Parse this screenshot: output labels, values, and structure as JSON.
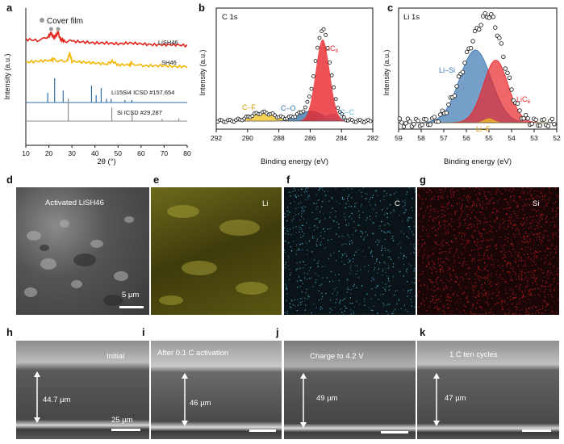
{
  "panels": {
    "a": {
      "letter": "a"
    },
    "b": {
      "letter": "b"
    },
    "c": {
      "letter": "c"
    },
    "d": {
      "letter": "d",
      "label": "Activated LiSH46",
      "scalebar": "5 µm"
    },
    "e": {
      "letter": "e",
      "element": "Li"
    },
    "f": {
      "letter": "f",
      "element": "C"
    },
    "g": {
      "letter": "g",
      "element": "Si"
    },
    "h": {
      "letter": "h",
      "label": "Initial",
      "thickness": "44.7 µm",
      "scalebar": "25 µm"
    },
    "i": {
      "letter": "i",
      "label": "After 0.1 C activation",
      "thickness": "46 µm"
    },
    "j": {
      "letter": "j",
      "label": "Charge to 4.2 V",
      "thickness": "49 µm"
    },
    "k": {
      "letter": "k",
      "label": "1 C ten cycles",
      "thickness": "47 µm"
    }
  },
  "colors": {
    "lish46": "#e0241b",
    "sh46": "#f2b705",
    "li15si4": "#2f6fa8",
    "si_icsd": "#8c8c8c",
    "lic6": "#e8262a",
    "cf": "#f0c21a",
    "co": "#2f6fa8",
    "cc": "#5fb6e8",
    "lisi": "#3a75b0",
    "lif": "#f0c21a",
    "map_li": "#a8a32a",
    "map_c": "#4fb8d8",
    "map_si": "#d42020"
  },
  "chart_data": [
    {
      "id": "a",
      "type": "line",
      "title": "",
      "xlabel": "2θ (°)",
      "ylabel": "Intensity (a.u.)",
      "xlim": [
        10,
        80
      ],
      "xticks": [
        10,
        20,
        30,
        40,
        50,
        60,
        70,
        80
      ],
      "legend": "Cover film",
      "series": [
        {
          "name": "LiSH46",
          "x": [
            10,
            15,
            19,
            21,
            22,
            23,
            24,
            25,
            27,
            30,
            35,
            40,
            45,
            50,
            55,
            60,
            65,
            70,
            75,
            80
          ],
          "y": [
            0.6,
            0.55,
            0.65,
            0.95,
            0.7,
            0.8,
            1.0,
            0.6,
            0.5,
            0.5,
            0.45,
            0.4,
            0.4,
            0.35,
            0.4,
            0.35,
            0.3,
            0.3,
            0.3,
            0.25
          ]
        },
        {
          "name": "SH46",
          "x": [
            10,
            15,
            20,
            22,
            25,
            28,
            29,
            30,
            35,
            40,
            45,
            47.5,
            50,
            55,
            56,
            60,
            65,
            70,
            75,
            80
          ],
          "y": [
            0.5,
            0.55,
            0.6,
            0.65,
            0.55,
            0.6,
            1.0,
            0.55,
            0.5,
            0.45,
            0.4,
            0.55,
            0.35,
            0.35,
            0.45,
            0.3,
            0.3,
            0.3,
            0.25,
            0.25
          ]
        },
        {
          "name": "Li15Si4 ICSD #157,654",
          "type": "stick",
          "x": [
            19.5,
            22.5,
            26.2,
            38.5,
            40.5,
            42.7,
            45,
            47,
            53,
            56
          ],
          "y": [
            0.4,
            1.0,
            0.5,
            0.7,
            0.3,
            0.6,
            0.15,
            0.15,
            0.1,
            0.1
          ]
        },
        {
          "name": "Si ICSD #29,287",
          "type": "stick",
          "x": [
            28.4,
            47.3,
            56.1,
            69.1,
            76.4
          ],
          "y": [
            1.0,
            0.6,
            0.35,
            0.1,
            0.12
          ]
        }
      ],
      "labels": {
        "lish46": "LiSH46",
        "sh46": "SH46",
        "li15si4": "Li15Si4 ICSD #157,654",
        "si": "Si ICSD #29,287"
      }
    },
    {
      "id": "b",
      "type": "line",
      "title": "C 1s",
      "xlabel": "Binding energy (eV)",
      "ylabel": "Intensity (a.u.)",
      "xlim": [
        292,
        282
      ],
      "xticks": [
        292,
        290,
        288,
        286,
        284,
        282
      ],
      "components": [
        {
          "name": "LiC6",
          "center": 285.2,
          "height": 0.78,
          "width": 0.45
        },
        {
          "name": "C–F",
          "center": 289.0,
          "height": 0.08,
          "width": 0.8
        },
        {
          "name": "C–O",
          "center": 286.0,
          "height": 0.1,
          "width": 0.8
        },
        {
          "name": "C–C",
          "center": 284.6,
          "height": 0.07,
          "width": 0.5
        }
      ]
    },
    {
      "id": "c",
      "type": "line",
      "title": "Li 1s",
      "xlabel": "Binding energy (eV)",
      "ylabel": "Intensity (a.u.)",
      "xlim": [
        59,
        52
      ],
      "xticks": [
        59,
        58,
        57,
        56,
        55,
        54,
        53,
        52
      ],
      "components": [
        {
          "name": "Li–Si",
          "center": 55.6,
          "height": 0.72,
          "width": 0.7
        },
        {
          "name": "LiC6",
          "center": 54.7,
          "height": 0.62,
          "width": 0.55
        },
        {
          "name": "Li–F",
          "center": 55.0,
          "height": 0.04,
          "width": 0.2
        }
      ]
    }
  ]
}
